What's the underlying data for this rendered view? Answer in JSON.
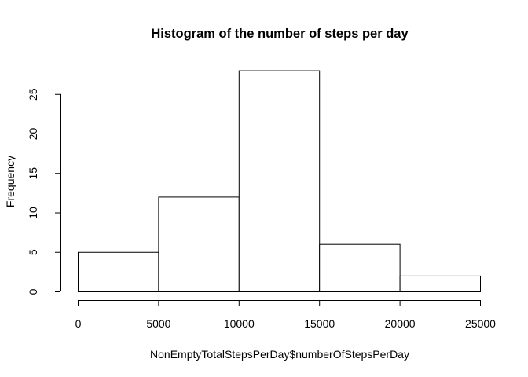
{
  "chart_data": {
    "type": "bar",
    "title": "Histogram of the number of steps per day",
    "xlabel": "NonEmptyTotalStepsPerDay$numberOfStepsPerDay",
    "ylabel": "Frequency",
    "bins": [
      {
        "start": 0,
        "end": 5000,
        "count": 5
      },
      {
        "start": 5000,
        "end": 10000,
        "count": 12
      },
      {
        "start": 10000,
        "end": 15000,
        "count": 28
      },
      {
        "start": 15000,
        "end": 20000,
        "count": 6
      },
      {
        "start": 20000,
        "end": 25000,
        "count": 2
      }
    ],
    "xlim": [
      0,
      25000
    ],
    "ylim": [
      0,
      28
    ],
    "x_ticks": [
      0,
      5000,
      10000,
      15000,
      20000,
      25000
    ],
    "y_ticks": [
      0,
      5,
      10,
      15,
      20,
      25
    ],
    "grid": false,
    "bar_fill": "#ffffff",
    "bar_stroke": "#000000"
  }
}
